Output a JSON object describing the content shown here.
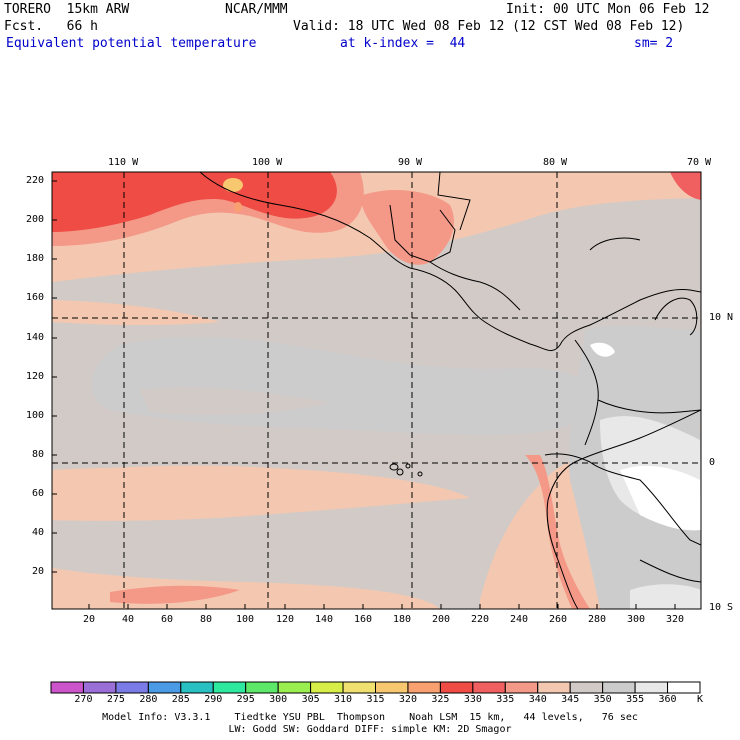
{
  "header": {
    "model": "TORERO  15km ARW",
    "org": "NCAR/MMM",
    "init": "Init: 00 UTC Mon 06 Feb 12",
    "fcst": "Fcst.   66 h",
    "valid": "Valid: 18 UTC Wed 08 Feb 12 (12 CST Wed 08 Feb 12)",
    "field": "Equivalent potential temperature",
    "level": "at k-index =  44",
    "smooth": "sm= 2"
  },
  "map": {
    "top_lon_labels": [
      "110 W",
      "100 W",
      "90 W",
      "80 W",
      "70 W"
    ],
    "right_lat_labels": [
      "10 N",
      "0",
      "10 S"
    ],
    "left_y_ticks": [
      "220",
      "200",
      "180",
      "160",
      "140",
      "120",
      "100",
      "80",
      "60",
      "40",
      "20"
    ],
    "bottom_x_ticks": [
      "20",
      "40",
      "60",
      "80",
      "100",
      "120",
      "140",
      "160",
      "180",
      "200",
      "220",
      "240",
      "260",
      "280",
      "300",
      "320"
    ]
  },
  "colorbar": {
    "labels": [
      "270",
      "275",
      "280",
      "285",
      "290",
      "295",
      "300",
      "305",
      "310",
      "315",
      "320",
      "325",
      "330",
      "335",
      "340",
      "345",
      "350",
      "355",
      "360"
    ],
    "unit": "K",
    "colors": [
      "#cc55cc",
      "#9a70d8",
      "#7b7be8",
      "#4a9ae6",
      "#28c0c0",
      "#2ee8a0",
      "#5ee86a",
      "#9aee50",
      "#d8ee48",
      "#f0e070",
      "#f8c870",
      "#f8a070",
      "#ee4c44",
      "#f06060",
      "#f49888",
      "#f4c8b0",
      "#d2cac6",
      "#cccccc",
      "#e8e8e8",
      "#ffffff"
    ]
  },
  "footer": {
    "line1": "Model Info: V3.3.1    Tiedtke YSU PBL  Thompson    Noah LSM  15 km,   44 levels,   76 sec",
    "line2": "LW: Godd SW: Goddard DIFF: simple KM: 2D Smagor"
  }
}
